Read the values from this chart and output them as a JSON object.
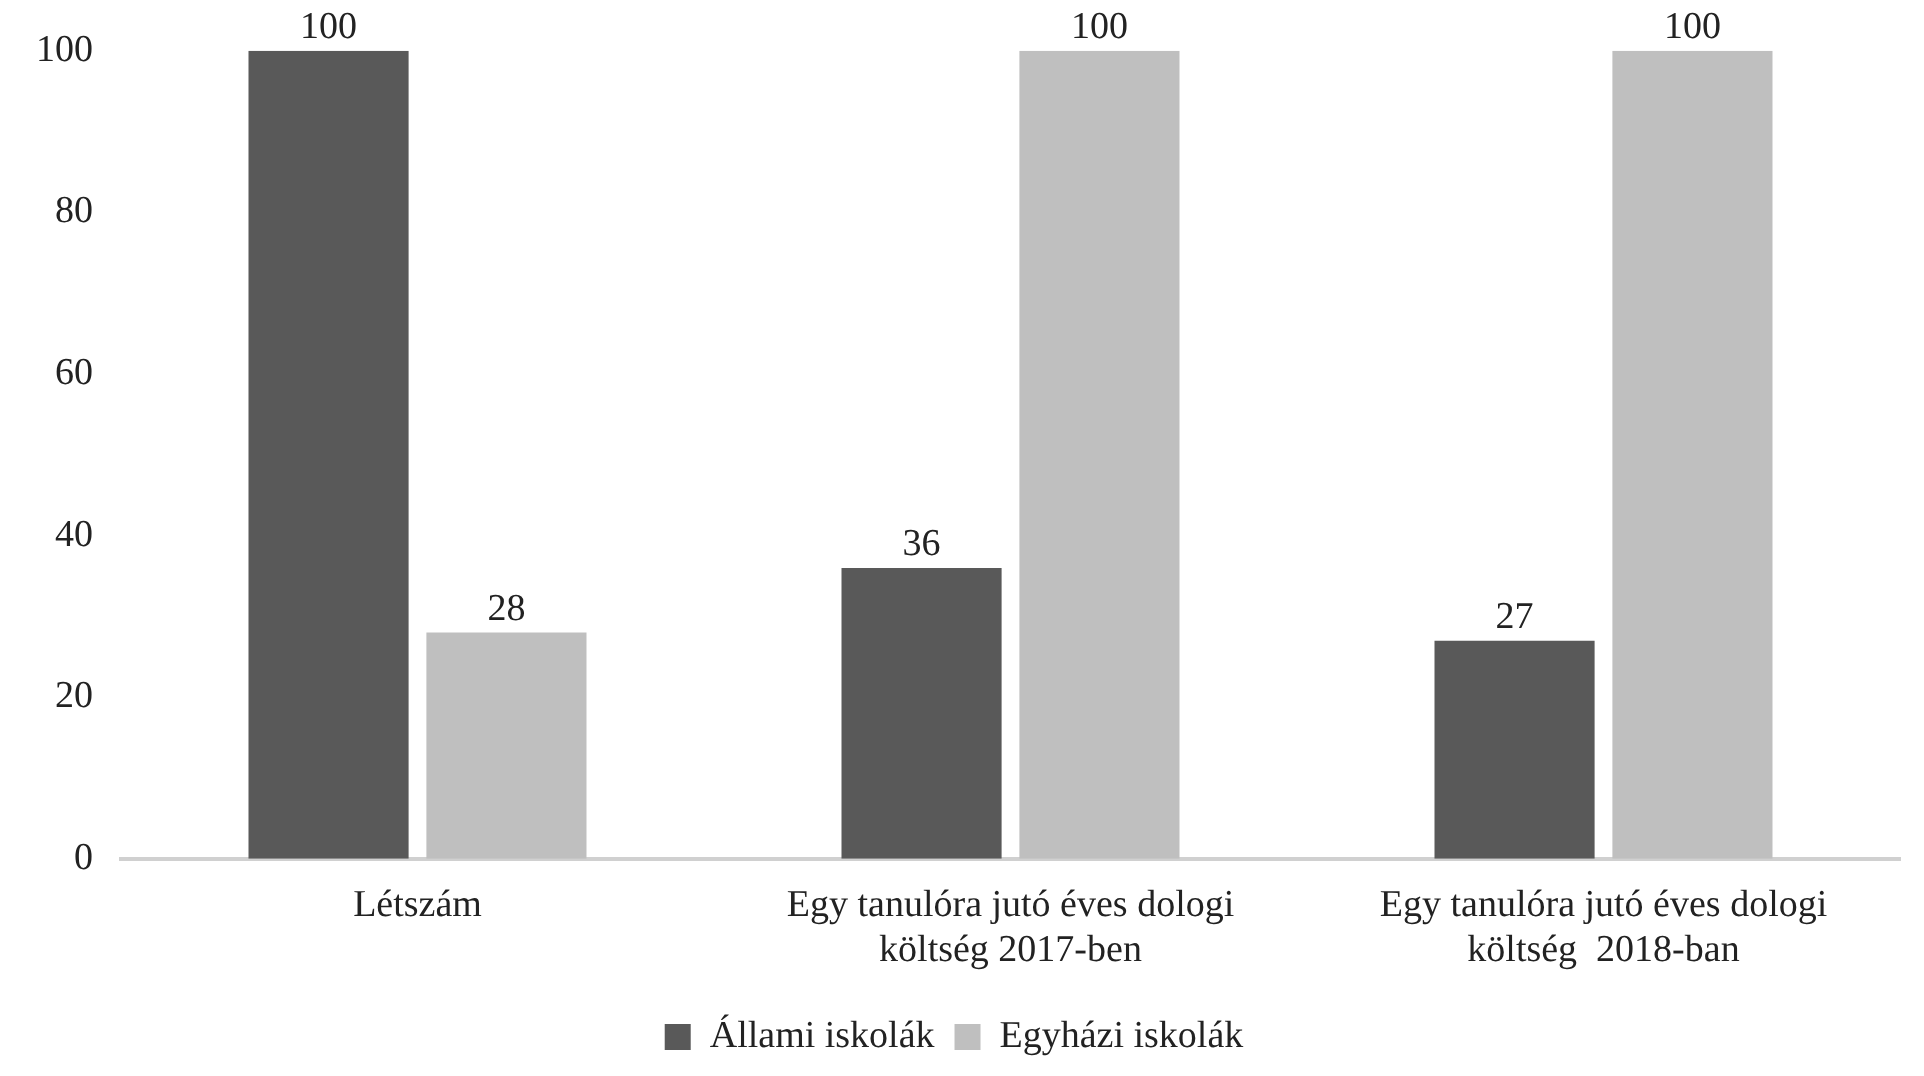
{
  "chart_data": {
    "type": "bar",
    "categories": [
      "Létszám",
      "Egy tanulóra jutó éves dologi\nköltség 2017-ben",
      "Egy tanulóra jutó éves dologi\nköltség  2018-ban"
    ],
    "series": [
      {
        "name": "Állami iskolák",
        "color": "#595959",
        "values": [
          100,
          36,
          27
        ]
      },
      {
        "name": "Egyházi iskolák",
        "color": "#bfbfbf",
        "values": [
          28,
          100,
          100
        ]
      }
    ],
    "ylim": [
      0,
      100
    ],
    "yticks": [
      0,
      20,
      40,
      60,
      80,
      100
    ],
    "data_labels": true,
    "legend": "bottom",
    "grid": false
  }
}
